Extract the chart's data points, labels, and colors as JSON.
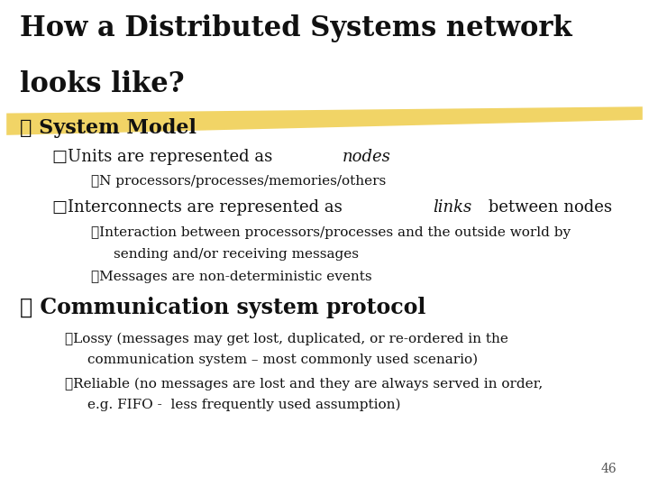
{
  "bg_color": "#ffffff",
  "title_line1": "How a Distributed Systems network",
  "title_line2": "looks like?",
  "title_fontsize": 22,
  "title_color": "#111111",
  "highlight_color": "#e8b800",
  "highlight_alpha": 0.6,
  "page_num": "46",
  "page_num_fontsize": 10
}
